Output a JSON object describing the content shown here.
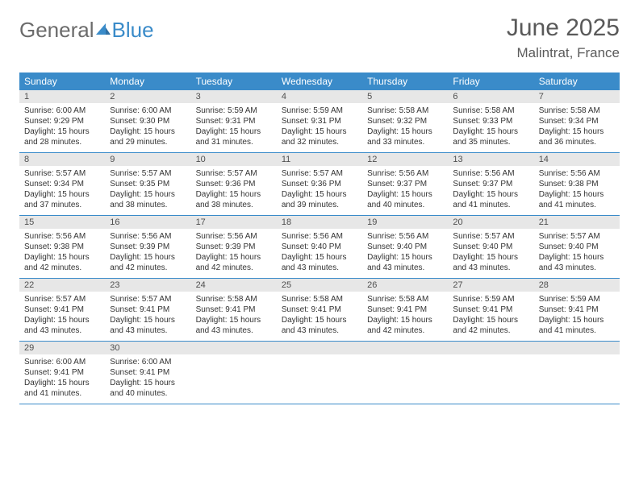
{
  "logo": {
    "word1": "General",
    "word2": "Blue"
  },
  "title": "June 2025",
  "location": "Malintrat, France",
  "header_bg": "#3a8bc9",
  "daynum_bg": "#e7e7e7",
  "week_border": "#3a8bc9",
  "day_names": [
    "Sunday",
    "Monday",
    "Tuesday",
    "Wednesday",
    "Thursday",
    "Friday",
    "Saturday"
  ],
  "weeks": [
    [
      {
        "n": "1",
        "sr": "Sunrise: 6:00 AM",
        "ss": "Sunset: 9:29 PM",
        "d1": "Daylight: 15 hours",
        "d2": "and 28 minutes."
      },
      {
        "n": "2",
        "sr": "Sunrise: 6:00 AM",
        "ss": "Sunset: 9:30 PM",
        "d1": "Daylight: 15 hours",
        "d2": "and 29 minutes."
      },
      {
        "n": "3",
        "sr": "Sunrise: 5:59 AM",
        "ss": "Sunset: 9:31 PM",
        "d1": "Daylight: 15 hours",
        "d2": "and 31 minutes."
      },
      {
        "n": "4",
        "sr": "Sunrise: 5:59 AM",
        "ss": "Sunset: 9:31 PM",
        "d1": "Daylight: 15 hours",
        "d2": "and 32 minutes."
      },
      {
        "n": "5",
        "sr": "Sunrise: 5:58 AM",
        "ss": "Sunset: 9:32 PM",
        "d1": "Daylight: 15 hours",
        "d2": "and 33 minutes."
      },
      {
        "n": "6",
        "sr": "Sunrise: 5:58 AM",
        "ss": "Sunset: 9:33 PM",
        "d1": "Daylight: 15 hours",
        "d2": "and 35 minutes."
      },
      {
        "n": "7",
        "sr": "Sunrise: 5:58 AM",
        "ss": "Sunset: 9:34 PM",
        "d1": "Daylight: 15 hours",
        "d2": "and 36 minutes."
      }
    ],
    [
      {
        "n": "8",
        "sr": "Sunrise: 5:57 AM",
        "ss": "Sunset: 9:34 PM",
        "d1": "Daylight: 15 hours",
        "d2": "and 37 minutes."
      },
      {
        "n": "9",
        "sr": "Sunrise: 5:57 AM",
        "ss": "Sunset: 9:35 PM",
        "d1": "Daylight: 15 hours",
        "d2": "and 38 minutes."
      },
      {
        "n": "10",
        "sr": "Sunrise: 5:57 AM",
        "ss": "Sunset: 9:36 PM",
        "d1": "Daylight: 15 hours",
        "d2": "and 38 minutes."
      },
      {
        "n": "11",
        "sr": "Sunrise: 5:57 AM",
        "ss": "Sunset: 9:36 PM",
        "d1": "Daylight: 15 hours",
        "d2": "and 39 minutes."
      },
      {
        "n": "12",
        "sr": "Sunrise: 5:56 AM",
        "ss": "Sunset: 9:37 PM",
        "d1": "Daylight: 15 hours",
        "d2": "and 40 minutes."
      },
      {
        "n": "13",
        "sr": "Sunrise: 5:56 AM",
        "ss": "Sunset: 9:37 PM",
        "d1": "Daylight: 15 hours",
        "d2": "and 41 minutes."
      },
      {
        "n": "14",
        "sr": "Sunrise: 5:56 AM",
        "ss": "Sunset: 9:38 PM",
        "d1": "Daylight: 15 hours",
        "d2": "and 41 minutes."
      }
    ],
    [
      {
        "n": "15",
        "sr": "Sunrise: 5:56 AM",
        "ss": "Sunset: 9:38 PM",
        "d1": "Daylight: 15 hours",
        "d2": "and 42 minutes."
      },
      {
        "n": "16",
        "sr": "Sunrise: 5:56 AM",
        "ss": "Sunset: 9:39 PM",
        "d1": "Daylight: 15 hours",
        "d2": "and 42 minutes."
      },
      {
        "n": "17",
        "sr": "Sunrise: 5:56 AM",
        "ss": "Sunset: 9:39 PM",
        "d1": "Daylight: 15 hours",
        "d2": "and 42 minutes."
      },
      {
        "n": "18",
        "sr": "Sunrise: 5:56 AM",
        "ss": "Sunset: 9:40 PM",
        "d1": "Daylight: 15 hours",
        "d2": "and 43 minutes."
      },
      {
        "n": "19",
        "sr": "Sunrise: 5:56 AM",
        "ss": "Sunset: 9:40 PM",
        "d1": "Daylight: 15 hours",
        "d2": "and 43 minutes."
      },
      {
        "n": "20",
        "sr": "Sunrise: 5:57 AM",
        "ss": "Sunset: 9:40 PM",
        "d1": "Daylight: 15 hours",
        "d2": "and 43 minutes."
      },
      {
        "n": "21",
        "sr": "Sunrise: 5:57 AM",
        "ss": "Sunset: 9:40 PM",
        "d1": "Daylight: 15 hours",
        "d2": "and 43 minutes."
      }
    ],
    [
      {
        "n": "22",
        "sr": "Sunrise: 5:57 AM",
        "ss": "Sunset: 9:41 PM",
        "d1": "Daylight: 15 hours",
        "d2": "and 43 minutes."
      },
      {
        "n": "23",
        "sr": "Sunrise: 5:57 AM",
        "ss": "Sunset: 9:41 PM",
        "d1": "Daylight: 15 hours",
        "d2": "and 43 minutes."
      },
      {
        "n": "24",
        "sr": "Sunrise: 5:58 AM",
        "ss": "Sunset: 9:41 PM",
        "d1": "Daylight: 15 hours",
        "d2": "and 43 minutes."
      },
      {
        "n": "25",
        "sr": "Sunrise: 5:58 AM",
        "ss": "Sunset: 9:41 PM",
        "d1": "Daylight: 15 hours",
        "d2": "and 43 minutes."
      },
      {
        "n": "26",
        "sr": "Sunrise: 5:58 AM",
        "ss": "Sunset: 9:41 PM",
        "d1": "Daylight: 15 hours",
        "d2": "and 42 minutes."
      },
      {
        "n": "27",
        "sr": "Sunrise: 5:59 AM",
        "ss": "Sunset: 9:41 PM",
        "d1": "Daylight: 15 hours",
        "d2": "and 42 minutes."
      },
      {
        "n": "28",
        "sr": "Sunrise: 5:59 AM",
        "ss": "Sunset: 9:41 PM",
        "d1": "Daylight: 15 hours",
        "d2": "and 41 minutes."
      }
    ],
    [
      {
        "n": "29",
        "sr": "Sunrise: 6:00 AM",
        "ss": "Sunset: 9:41 PM",
        "d1": "Daylight: 15 hours",
        "d2": "and 41 minutes."
      },
      {
        "n": "30",
        "sr": "Sunrise: 6:00 AM",
        "ss": "Sunset: 9:41 PM",
        "d1": "Daylight: 15 hours",
        "d2": "and 40 minutes."
      },
      null,
      null,
      null,
      null,
      null
    ]
  ]
}
